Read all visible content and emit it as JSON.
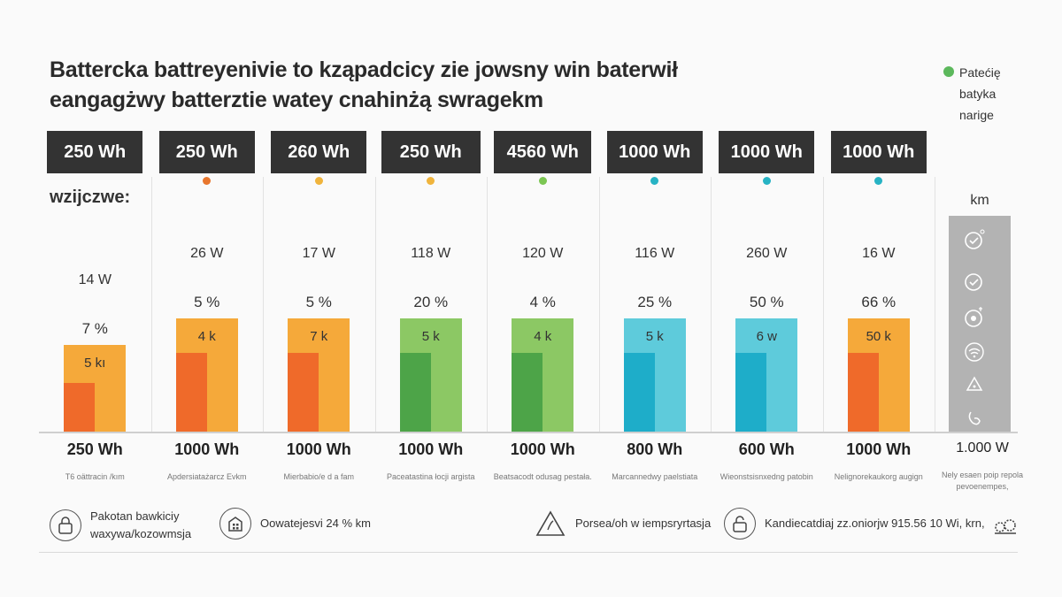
{
  "title": {
    "line1": "Battercka battreyenivie to kząpadcicy zie jowsny win baterwił",
    "line2": "eangagżwy batterztie watey cnahinżą swragekm"
  },
  "legend": {
    "color": "#5cb85c",
    "lines": [
      "Patećię",
      "batyka",
      "narige"
    ]
  },
  "section_label": "wzijczwe:",
  "chart_data": {
    "type": "bar",
    "categories": [
      "250 Wh",
      "250 Wh",
      "260 Wh",
      "250 Wh",
      "4560 Wh",
      "1000 Wh",
      "1000 Wh",
      "1000 Wh"
    ],
    "columns": [
      {
        "cap_top": "250 Wh",
        "marker": "",
        "power": "14 W",
        "pct": "7 %",
        "bar_label": "5 kı",
        "cap_bottom": "250 Wh",
        "sub": "T6 oättracin /kım",
        "light": "#f5a93a",
        "dark": "#ef6a2a",
        "outer_value": 0.43,
        "inner_value": 0.24
      },
      {
        "cap_top": "250 Wh",
        "marker": "#e8762d",
        "power": "26 W",
        "pct": "5 %",
        "bar_label": "4 k",
        "cap_bottom": "1000 Wh",
        "sub": "Apdersiatażarcz Evkm",
        "light": "#f5a93a",
        "dark": "#ef6a2a",
        "outer_value": 0.56,
        "inner_value": 0.39
      },
      {
        "cap_top": "260 Wh",
        "marker": "#f0b43c",
        "power": "17 W",
        "pct": "5 %",
        "bar_label": "7 k",
        "cap_bottom": "1000 Wh",
        "sub": "Mierbabio/e d a fam",
        "light": "#f5a93a",
        "dark": "#ef6a2a",
        "outer_value": 0.56,
        "inner_value": 0.39
      },
      {
        "cap_top": "250 Wh",
        "marker": "#f0b43c",
        "power": "118 W",
        "pct": "20 %",
        "bar_label": "5 k",
        "cap_bottom": "1000 Wh",
        "sub": "Paceatastina łocji argista",
        "light": "#8cc864",
        "dark": "#4da448",
        "outer_value": 0.56,
        "inner_value": 0.39
      },
      {
        "cap_top": "4560 Wh",
        "marker": "#7cc653",
        "power": "120 W",
        "pct": "4 %",
        "bar_label": "4 k",
        "cap_bottom": "1000 Wh",
        "sub": "Beatsacodt odusag pestała.",
        "light": "#8cc864",
        "dark": "#4da448",
        "outer_value": 0.56,
        "inner_value": 0.39
      },
      {
        "cap_top": "1000 Wh",
        "marker": "#27b3c4",
        "power": "116 W",
        "pct": "25 %",
        "bar_label": "5 k",
        "cap_bottom": "800 Wh",
        "sub": "Marcannedwy paelstiata",
        "light": "#5ecbdb",
        "dark": "#1eadc9",
        "outer_value": 0.56,
        "inner_value": 0.39
      },
      {
        "cap_top": "1000 Wh",
        "marker": "#27b3c4",
        "power": "260 W",
        "pct": "50 %",
        "bar_label": "6 w",
        "cap_bottom": "600 Wh",
        "sub": "Wieonstsisnxedng patobin",
        "light": "#5ecbdb",
        "dark": "#1eadc9",
        "outer_value": 0.56,
        "inner_value": 0.39
      },
      {
        "cap_top": "1000 Wh",
        "marker": "#27b3c4",
        "power": "16 W",
        "pct": "66 %",
        "bar_label": "50 k",
        "cap_bottom": "1000 Wh",
        "sub": "Nelignorekaukorg augign",
        "light": "#f5a93a",
        "dark": "#ef6a2a",
        "outer_value": 0.56,
        "inner_value": 0.39
      }
    ]
  },
  "side": {
    "title": "km",
    "icons": [
      "check-clock-icon",
      "check-icon",
      "gauge-icon",
      "wifi-icon",
      "drop-icon",
      "battery-icon"
    ],
    "cap": "1.000 W",
    "sub_line1": "Nely esaen poip repola",
    "sub_line2": "pevoenempes,"
  },
  "footer": {
    "item1_line1": "Pakotan bawkiciy",
    "item1_line2": "waxywa/kozowmsja",
    "item2": "Oowatejesvi 24 % km",
    "item3": "Porsea/oh w iempsryrtasja",
    "item4": "Kandiecatdiaj zz.oniorjw 915.56 10 Wi, krn,"
  }
}
